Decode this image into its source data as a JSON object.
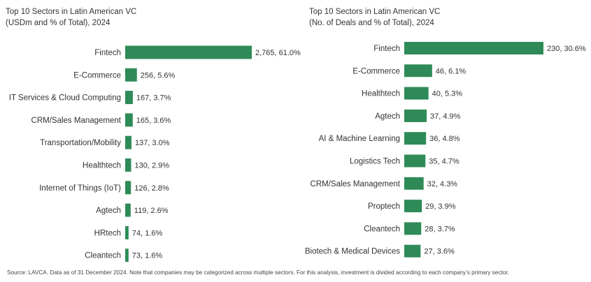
{
  "chart_data": [
    {
      "type": "bar",
      "orientation": "horizontal",
      "title_lines": [
        "Top 10 Sectors in Latin American VC",
        "(USDm and % of Total), 2024"
      ],
      "categories": [
        "Fintech",
        "E-Commerce",
        "IT Services & Cloud Computing",
        "CRM/Sales Management",
        "Transportation/Mobility",
        "Healthtech",
        "Internet of Things (IoT)",
        "Agtech",
        "HRtech",
        "Cleantech"
      ],
      "values": [
        2765,
        256,
        167,
        165,
        137,
        130,
        126,
        119,
        74,
        73
      ],
      "labels": [
        "2,765, 61.0%",
        "256, 5.6%",
        "167, 3.7%",
        "165, 3.6%",
        "137, 3.0%",
        "130, 2.9%",
        "126, 2.8%",
        "119, 2.6%",
        "74, 1.6%",
        "73, 1.6%"
      ],
      "bar_color": "#2e8b57"
    },
    {
      "type": "bar",
      "orientation": "horizontal",
      "title_lines": [
        "Top 10 Sectors in Latin American VC",
        "(No. of Deals and % of Total), 2024"
      ],
      "categories": [
        "Fintech",
        "E-Commerce",
        "Healthtech",
        "Agtech",
        "AI & Machine Learning",
        "Logistics Tech",
        "CRM/Sales Management",
        "Proptech",
        "Cleantech",
        "Biotech & Medical Devices"
      ],
      "values": [
        230,
        46,
        40,
        37,
        36,
        35,
        32,
        29,
        28,
        27
      ],
      "labels": [
        "230, 30.6%",
        "46, 6.1%",
        "40, 5.3%",
        "37, 4.9%",
        "36, 4.8%",
        "35, 4.7%",
        "32, 4.3%",
        "29, 3.9%",
        "28, 3.7%",
        "27, 3.6%"
      ],
      "bar_color": "#2e8b57"
    }
  ],
  "footnote": "Source: LAVCA. Data as of 31 December 2024. Note that companies may be categorized across multiple sectors. For this analysis, investment is divided according to each company’s primary sector."
}
